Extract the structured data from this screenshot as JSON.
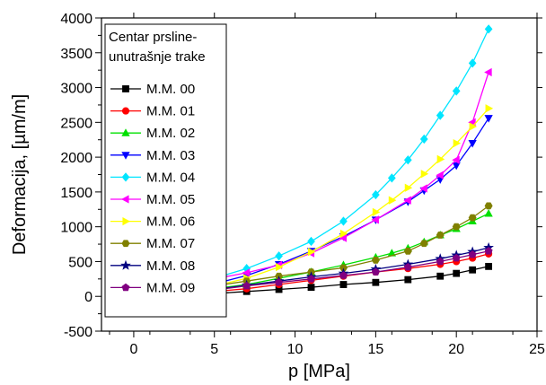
{
  "chart_data": {
    "type": "line",
    "xlabel": "p [MPa]",
    "ylabel": "Deformacija,  [µm/m]",
    "xlim": [
      -2,
      25
    ],
    "ylim": [
      -500,
      4000
    ],
    "xticks": [
      0,
      5,
      10,
      15,
      20,
      25
    ],
    "yticks": [
      -500,
      0,
      500,
      1000,
      1500,
      2000,
      2500,
      3000,
      3500,
      4000
    ],
    "xtick_labels": [
      "0",
      "5",
      "10",
      "15",
      "20",
      "25"
    ],
    "ytick_labels": [
      "-500",
      "0",
      "500",
      "1000",
      "1500",
      "2000",
      "2500",
      "3000",
      "3500",
      "4000"
    ],
    "grid": false,
    "legend_title": "Centar prsline-unutrašnje trake",
    "legend_title_lines": [
      "Centar prsline-",
      "unutrašnje trake"
    ],
    "legend_position": "top-left",
    "series": [
      {
        "name": "M.M. 00",
        "color": "#000000",
        "marker": "square",
        "x": [
          0,
          3,
          5,
          7,
          9,
          11,
          13,
          15,
          17,
          19,
          20,
          21,
          22
        ],
        "y": [
          0,
          20,
          40,
          70,
          100,
          130,
          170,
          200,
          240,
          290,
          330,
          380,
          430
        ]
      },
      {
        "name": "M.M. 01",
        "color": "#ff0000",
        "marker": "circle",
        "x": [
          0,
          3,
          5,
          7,
          9,
          11,
          13,
          15,
          17,
          19,
          20,
          21,
          22
        ],
        "y": [
          0,
          40,
          70,
          110,
          170,
          230,
          290,
          350,
          400,
          460,
          500,
          550,
          610
        ]
      },
      {
        "name": "M.M. 02",
        "color": "#00e000",
        "marker": "triangle-up",
        "x": [
          0,
          3,
          5,
          7,
          9,
          11,
          13,
          15,
          16,
          17,
          18,
          19,
          20,
          21,
          22
        ],
        "y": [
          0,
          60,
          110,
          170,
          260,
          350,
          450,
          560,
          620,
          690,
          780,
          880,
          970,
          1080,
          1190
        ]
      },
      {
        "name": "M.M. 03",
        "color": "#0000ff",
        "marker": "triangle-down",
        "x": [
          0,
          3,
          5,
          7,
          9,
          11,
          13,
          15,
          17,
          18,
          19,
          20,
          21,
          22
        ],
        "y": [
          0,
          100,
          180,
          300,
          460,
          650,
          860,
          1100,
          1360,
          1520,
          1680,
          1880,
          2200,
          2560
        ]
      },
      {
        "name": "M.M. 04",
        "color": "#00e5ff",
        "marker": "diamond",
        "x": [
          0,
          3,
          5,
          7,
          9,
          11,
          13,
          15,
          16,
          17,
          18,
          19,
          20,
          21,
          22
        ],
        "y": [
          0,
          150,
          260,
          400,
          580,
          790,
          1080,
          1460,
          1700,
          1960,
          2260,
          2600,
          2950,
          3350,
          3840
        ]
      },
      {
        "name": "M.M. 05",
        "color": "#ff00ff",
        "marker": "triangle-left",
        "x": [
          0,
          3,
          5,
          7,
          9,
          11,
          13,
          15,
          17,
          18,
          19,
          20,
          21,
          22
        ],
        "y": [
          0,
          160,
          250,
          340,
          450,
          620,
          840,
          1100,
          1380,
          1550,
          1740,
          1960,
          2500,
          3220
        ]
      },
      {
        "name": "M.M. 06",
        "color": "#ffff00",
        "marker": "triangle-right",
        "x": [
          0,
          3,
          5,
          7,
          9,
          11,
          13,
          15,
          16,
          17,
          18,
          19,
          20,
          21,
          22
        ],
        "y": [
          0,
          80,
          150,
          260,
          420,
          640,
          900,
          1210,
          1380,
          1560,
          1760,
          1970,
          2200,
          2440,
          2700
        ]
      },
      {
        "name": "M.M. 07",
        "color": "#808000",
        "marker": "hexagon",
        "x": [
          0,
          3,
          5,
          7,
          9,
          11,
          13,
          15,
          17,
          18,
          19,
          20,
          21,
          22
        ],
        "y": [
          0,
          90,
          150,
          220,
          290,
          350,
          410,
          520,
          650,
          760,
          880,
          1000,
          1130,
          1300
        ]
      },
      {
        "name": "M.M. 08",
        "color": "#000080",
        "marker": "star",
        "x": [
          0,
          3,
          5,
          7,
          9,
          11,
          13,
          15,
          17,
          19,
          20,
          21,
          22
        ],
        "y": [
          0,
          50,
          100,
          160,
          220,
          280,
          330,
          390,
          460,
          540,
          590,
          640,
          700
        ]
      },
      {
        "name": "M.M. 09",
        "color": "#800080",
        "marker": "pentagon",
        "x": [
          0,
          3,
          5,
          7,
          9,
          11,
          13,
          15,
          17,
          19,
          20,
          21,
          22
        ],
        "y": [
          0,
          45,
          90,
          150,
          200,
          250,
          300,
          350,
          420,
          500,
          550,
          600,
          650
        ]
      }
    ]
  }
}
